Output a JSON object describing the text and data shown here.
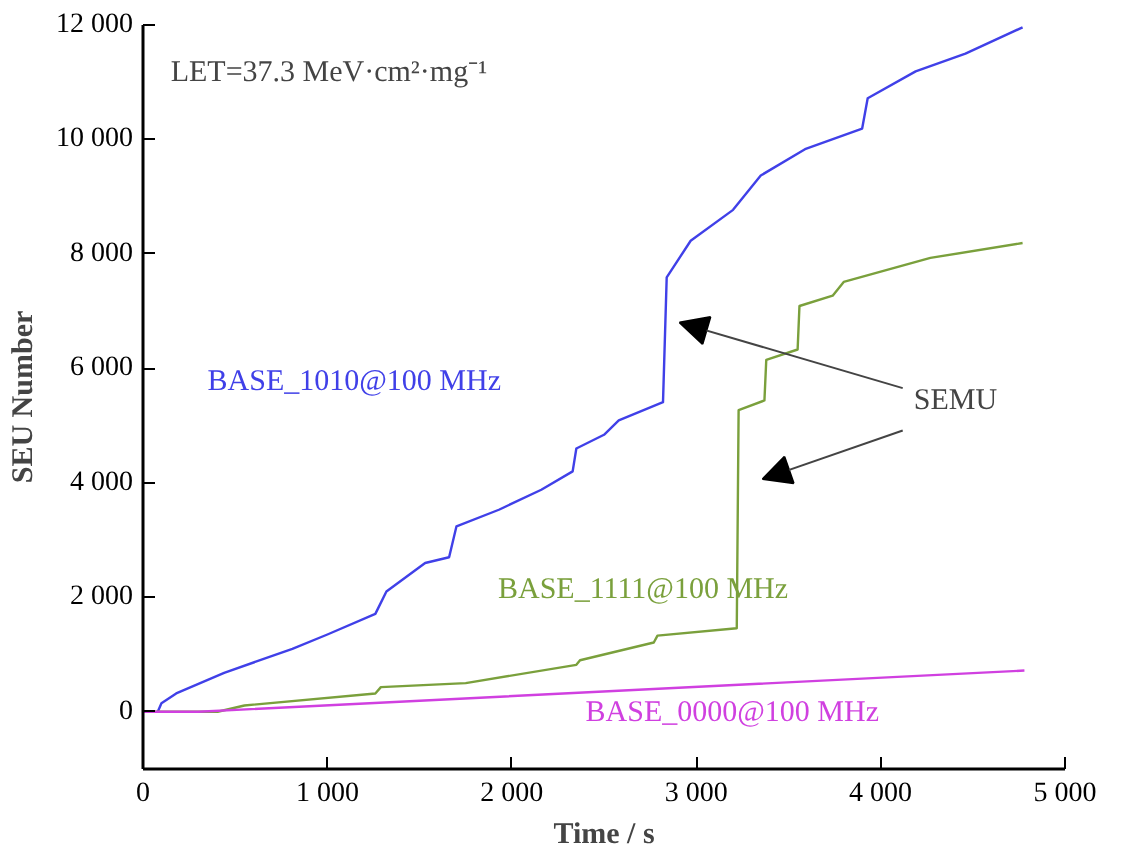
{
  "chart_data": {
    "type": "line",
    "xlabel": "Time / s",
    "ylabel": "SEU Number",
    "xlim": [
      0,
      5000
    ],
    "ylim": [
      -1000,
      12000
    ],
    "xticks": [
      0,
      {
        "value": 1000,
        "label": "1 000"
      },
      {
        "value": 2000,
        "label": "2 000"
      },
      {
        "value": 3000,
        "label": "3 000"
      },
      {
        "value": 4000,
        "label": "4 000"
      },
      {
        "value": 5000,
        "label": "5 000"
      }
    ],
    "yticks": [
      0,
      {
        "value": 2000,
        "label": "2 000"
      },
      {
        "value": 4000,
        "label": "4 000"
      },
      {
        "value": 6000,
        "label": "6 000"
      },
      {
        "value": 8000,
        "label": "8 000"
      },
      {
        "value": 10000,
        "label": "10 000"
      },
      {
        "value": 12000,
        "label": "12 000"
      }
    ],
    "grid": false,
    "annotations": [
      "LET=37.3 MeV·cm²·mg⁻¹",
      "SEMU"
    ],
    "series": [
      {
        "name": "BASE_1010@100 MHz",
        "color": "#4040e8",
        "x": [
          80,
          100,
          180,
          440,
          810,
          1000,
          1260,
          1320,
          1530,
          1660,
          1700,
          1930,
          2160,
          2330,
          2350,
          2500,
          2580,
          2820,
          2840,
          2970,
          3200,
          3350,
          3590,
          3900,
          3930,
          4190,
          4460,
          4770
        ],
        "values": [
          0,
          150,
          320,
          680,
          1100,
          1350,
          1710,
          2100,
          2600,
          2700,
          3240,
          3530,
          3880,
          4200,
          4600,
          4840,
          5090,
          5410,
          7590,
          8230,
          8770,
          9370,
          9830,
          10190,
          10720,
          11190,
          11500,
          11960
        ]
      },
      {
        "name": "BASE_1111@100 MHz",
        "color": "#7aa03c",
        "x": [
          0,
          405,
          550,
          1260,
          1290,
          1750,
          2350,
          2370,
          2770,
          2790,
          3220,
          3230,
          3370,
          3380,
          3550,
          3560,
          3740,
          3800,
          4270,
          4770
        ],
        "values": [
          0,
          0,
          110,
          320,
          430,
          500,
          820,
          900,
          1210,
          1330,
          1460,
          5270,
          5440,
          6150,
          6330,
          7090,
          7270,
          7510,
          7930,
          8190
        ]
      },
      {
        "name": "BASE_0000@100 MHz",
        "color": "#d040e0",
        "x": [
          0,
          300,
          4780
        ],
        "values": [
          0,
          0,
          720
        ]
      }
    ]
  }
}
